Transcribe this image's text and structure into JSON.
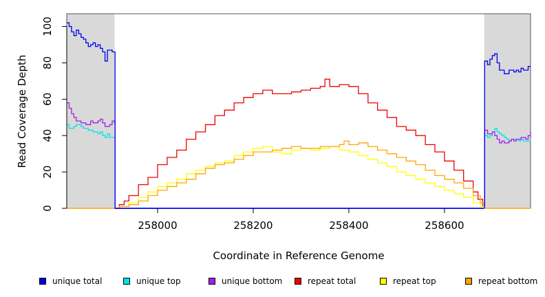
{
  "chart_data": {
    "type": "line",
    "title": "",
    "xlabel": "Coordinate in Reference Genome",
    "ylabel": "Read Coverage Depth",
    "xlim": [
      257810,
      258780
    ],
    "ylim": [
      0,
      107
    ],
    "x_ticks": [
      258000,
      258200,
      258400,
      258600
    ],
    "y_ticks": [
      0,
      20,
      40,
      60,
      80,
      100
    ],
    "grid": false,
    "legend_position": "bottom",
    "shaded_regions": [
      [
        257810,
        257910
      ],
      [
        258683,
        258780
      ]
    ],
    "shade_color": "#d9d9d9",
    "series": [
      {
        "name": "unique total",
        "color": "#0000ee",
        "x": [
          257810,
          257815,
          257820,
          257825,
          257830,
          257835,
          257840,
          257845,
          257850,
          257855,
          257860,
          257865,
          257870,
          257875,
          257880,
          257885,
          257890,
          257895,
          257900,
          257905,
          257910,
          257911,
          258683,
          258684,
          258690,
          258695,
          258700,
          258705,
          258710,
          258715,
          258720,
          258725,
          258730,
          258735,
          258740,
          258745,
          258750,
          258755,
          258760,
          258765,
          258770,
          258775,
          258780
        ],
        "y": [
          102,
          100,
          97,
          95,
          98,
          96,
          94,
          93,
          91,
          89,
          90,
          91,
          89,
          90,
          88,
          86,
          81,
          87,
          87,
          86,
          86,
          0,
          0,
          81,
          79,
          82,
          84,
          85,
          80,
          76,
          76,
          74,
          74,
          76,
          76,
          75,
          76,
          75,
          77,
          76,
          76,
          78,
          78
        ]
      },
      {
        "name": "unique top",
        "color": "#00e5e5",
        "x": [
          257810,
          257815,
          257820,
          257825,
          257830,
          257835,
          257840,
          257845,
          257850,
          257855,
          257860,
          257865,
          257870,
          257875,
          257880,
          257885,
          257890,
          257895,
          257900,
          257905,
          257910,
          257911,
          258683,
          258684,
          258690,
          258695,
          258700,
          258705,
          258710,
          258715,
          258720,
          258725,
          258730,
          258735,
          258740,
          258745,
          258750,
          258755,
          258760,
          258765,
          258770,
          258775,
          258780
        ],
        "y": [
          46,
          44,
          44,
          45,
          46,
          46,
          45,
          44,
          44,
          43,
          43,
          42,
          42,
          41,
          42,
          40,
          39,
          41,
          39,
          39,
          39,
          0,
          0,
          40,
          39,
          40,
          42,
          44,
          42,
          41,
          40,
          39,
          38,
          37,
          38,
          38,
          38,
          37,
          38,
          37,
          37,
          37,
          38
        ]
      },
      {
        "name": "unique bottom",
        "color": "#a020f0",
        "x": [
          257810,
          257815,
          257820,
          257825,
          257830,
          257835,
          257840,
          257845,
          257850,
          257855,
          257860,
          257865,
          257870,
          257875,
          257880,
          257885,
          257890,
          257895,
          257900,
          257905,
          257910,
          257911,
          258683,
          258684,
          258690,
          258695,
          258700,
          258705,
          258710,
          258715,
          258720,
          258725,
          258730,
          258735,
          258740,
          258745,
          258750,
          258755,
          258760,
          258765,
          258770,
          258775,
          258780
        ],
        "y": [
          58,
          55,
          52,
          50,
          48,
          48,
          47,
          47,
          46,
          46,
          48,
          47,
          47,
          48,
          49,
          47,
          45,
          45,
          46,
          48,
          47,
          0,
          0,
          43,
          41,
          41,
          42,
          40,
          38,
          36,
          37,
          36,
          36,
          37,
          38,
          37,
          38,
          38,
          39,
          39,
          38,
          40,
          42
        ]
      },
      {
        "name": "repeat total",
        "color": "#ee0000",
        "x": [
          257910,
          257920,
          257930,
          257940,
          257960,
          257980,
          258000,
          258020,
          258040,
          258060,
          258080,
          258100,
          258120,
          258140,
          258160,
          258180,
          258200,
          258220,
          258240,
          258260,
          258280,
          258300,
          258320,
          258340,
          258350,
          258360,
          258380,
          258400,
          258420,
          258440,
          258460,
          258480,
          258500,
          258520,
          258540,
          258560,
          258580,
          258600,
          258620,
          258640,
          258660,
          258670,
          258680,
          258683
        ],
        "y": [
          0,
          2,
          4,
          7,
          13,
          17,
          24,
          28,
          32,
          38,
          42,
          46,
          51,
          54,
          58,
          61,
          63,
          65,
          63,
          63,
          64,
          65,
          66,
          67,
          71,
          67,
          68,
          67,
          63,
          58,
          54,
          50,
          45,
          43,
          40,
          35,
          31,
          26,
          21,
          15,
          9,
          5,
          1,
          0
        ]
      },
      {
        "name": "repeat top",
        "color": "#ffff00",
        "x": [
          257910,
          257920,
          257940,
          257960,
          257980,
          258000,
          258020,
          258040,
          258060,
          258080,
          258100,
          258120,
          258140,
          258160,
          258180,
          258200,
          258220,
          258240,
          258260,
          258280,
          258300,
          258320,
          258340,
          258360,
          258380,
          258400,
          258420,
          258440,
          258460,
          258480,
          258500,
          258520,
          258540,
          258560,
          258580,
          258600,
          258620,
          258640,
          258660,
          258675,
          258683
        ],
        "y": [
          0,
          1,
          3,
          6,
          9,
          12,
          14,
          16,
          19,
          21,
          23,
          25,
          26,
          29,
          31,
          33,
          34,
          31,
          30,
          32,
          33,
          32,
          33,
          34,
          32,
          31,
          29,
          27,
          25,
          23,
          20,
          18,
          16,
          14,
          12,
          10,
          8,
          6,
          3,
          1,
          0
        ]
      },
      {
        "name": "repeat bottom",
        "color": "#ffa500",
        "x": [
          257910,
          257920,
          257940,
          257960,
          257980,
          258000,
          258020,
          258040,
          258060,
          258080,
          258100,
          258120,
          258140,
          258160,
          258180,
          258200,
          258220,
          258240,
          258260,
          258280,
          258300,
          258320,
          258340,
          258360,
          258380,
          258390,
          258400,
          258420,
          258440,
          258460,
          258480,
          258500,
          258520,
          258540,
          258560,
          258580,
          258600,
          258620,
          258640,
          258660,
          258675,
          258683
        ],
        "y": [
          0,
          1,
          2,
          4,
          7,
          10,
          12,
          14,
          16,
          19,
          22,
          24,
          25,
          27,
          29,
          31,
          31,
          32,
          33,
          34,
          33,
          33,
          34,
          34,
          35,
          37,
          35,
          36,
          34,
          32,
          30,
          28,
          26,
          24,
          21,
          18,
          16,
          14,
          11,
          7,
          3,
          0
        ]
      }
    ],
    "zero_lines": [
      {
        "color": "#0000ee",
        "from": 257910,
        "to": 258683
      },
      {
        "color": "#ffa500",
        "from": 257810,
        "to": 257910
      },
      {
        "color": "#ffa500",
        "from": 258683,
        "to": 258780
      }
    ]
  }
}
